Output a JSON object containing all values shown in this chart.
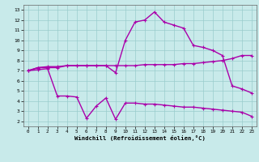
{
  "line1_x": [
    0,
    1,
    2,
    3,
    4,
    5,
    6,
    7,
    8,
    9,
    10,
    11,
    12,
    13,
    14,
    15,
    16,
    17,
    18,
    19,
    20,
    21,
    22,
    23
  ],
  "line1_y": [
    7.0,
    7.3,
    7.3,
    7.3,
    7.5,
    7.5,
    7.5,
    7.5,
    7.5,
    6.8,
    10.0,
    11.8,
    12.0,
    12.8,
    11.8,
    11.5,
    11.2,
    9.5,
    9.3,
    9.0,
    8.5,
    5.5,
    5.2,
    4.8
  ],
  "line2_x": [
    0,
    1,
    2,
    3,
    4,
    5,
    6,
    7,
    8,
    9,
    10,
    11,
    12,
    13,
    14,
    15,
    16,
    17,
    18,
    19,
    20,
    21,
    22,
    23
  ],
  "line2_y": [
    7.0,
    7.3,
    7.4,
    7.4,
    7.5,
    7.5,
    7.5,
    7.5,
    7.5,
    7.5,
    7.5,
    7.5,
    7.6,
    7.6,
    7.6,
    7.6,
    7.7,
    7.7,
    7.8,
    7.9,
    8.0,
    8.2,
    8.5,
    8.5
  ],
  "line3_x": [
    0,
    1,
    2,
    3,
    4,
    5,
    6,
    7,
    8,
    9,
    10,
    11,
    12,
    13,
    14,
    15,
    16,
    17,
    18,
    19,
    20,
    21,
    22,
    23
  ],
  "line3_y": [
    7.0,
    7.1,
    7.2,
    4.5,
    4.5,
    4.4,
    2.3,
    3.5,
    4.3,
    2.2,
    3.8,
    3.8,
    3.7,
    3.7,
    3.6,
    3.5,
    3.4,
    3.4,
    3.3,
    3.2,
    3.1,
    3.0,
    2.9,
    2.5
  ],
  "line_color": "#aa00aa",
  "bg_color": "#c8eaea",
  "grid_color": "#99cccc",
  "xlabel": "Windchill (Refroidissement éolien,°C)",
  "xlim": [
    -0.5,
    23.5
  ],
  "ylim": [
    1.5,
    13.5
  ],
  "xticks": [
    0,
    1,
    2,
    3,
    4,
    5,
    6,
    7,
    8,
    9,
    10,
    11,
    12,
    13,
    14,
    15,
    16,
    17,
    18,
    19,
    20,
    21,
    22,
    23
  ],
  "yticks": [
    2,
    3,
    4,
    5,
    6,
    7,
    8,
    9,
    10,
    11,
    12,
    13
  ]
}
